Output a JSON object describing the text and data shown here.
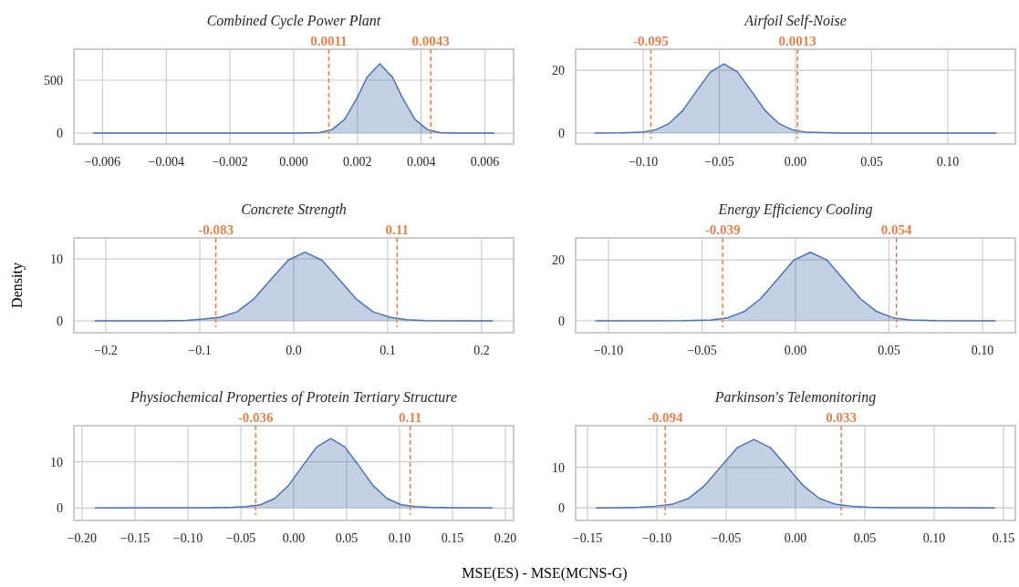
{
  "chart_data": [
    {
      "type": "area",
      "title": "Combined Cycle Power Plant",
      "color": "#4c72b0",
      "grid": true,
      "x": [
        -0.0063,
        -0.002,
        0.0,
        0.0008,
        0.0012,
        0.0016,
        0.002,
        0.0023,
        0.0027,
        0.0031,
        0.0034,
        0.0038,
        0.0042,
        0.0046,
        0.005,
        0.0063
      ],
      "values": [
        0,
        0,
        0,
        5,
        32,
        130,
        339,
        528,
        655,
        528,
        339,
        130,
        32,
        5,
        0,
        0
      ],
      "xlim": [
        -0.0069,
        0.0069
      ],
      "ylim": [
        -103,
        793
      ],
      "yticks": [
        0,
        500
      ],
      "xticks": [
        {
          "value": -0.006,
          "label": "−0.006"
        },
        {
          "value": -0.004,
          "label": "−0.004"
        },
        {
          "value": -0.002,
          "label": "−0.002"
        },
        {
          "value": 0,
          "label": "0.000"
        },
        {
          "value": 0.002,
          "label": "0.002"
        },
        {
          "value": 0.004,
          "label": "0.004"
        },
        {
          "value": 0.006,
          "label": "0.006"
        }
      ],
      "ref_lines": [
        {
          "axis": "x",
          "value": 0.0011,
          "label": "0.0011",
          "color": "#dd8452",
          "line_style": "dashed"
        },
        {
          "axis": "x",
          "value": 0.0043,
          "label": "0.0043",
          "color": "#dd8452",
          "line_style": "dashed"
        }
      ]
    },
    {
      "type": "area",
      "title": "Airfoil Self-Noise",
      "color": "#4c72b0",
      "grid": true,
      "x": [
        -0.132,
        -0.115,
        -0.1013,
        -0.0922,
        -0.0832,
        -0.0741,
        -0.0651,
        -0.056,
        -0.047,
        -0.038,
        -0.0289,
        -0.0199,
        -0.0108,
        -0.0018,
        0.0073,
        0.03,
        0.132
      ],
      "values": [
        0,
        0.05,
        0.24,
        0.97,
        2.98,
        7.14,
        13.3,
        19.4,
        22,
        19.4,
        13.3,
        7.14,
        2.98,
        0.97,
        0.24,
        0,
        0
      ],
      "xlim": [
        -0.1444,
        0.1444
      ],
      "ylim": [
        -3.5,
        26.7
      ],
      "yticks": [
        0,
        20
      ],
      "xticks": [
        {
          "value": -0.1,
          "label": "−0.10"
        },
        {
          "value": -0.05,
          "label": "−0.05"
        },
        {
          "value": 0,
          "label": "0.00"
        },
        {
          "value": 0.05,
          "label": "0.05"
        },
        {
          "value": 0.1,
          "label": "0.10"
        }
      ],
      "ref_lines": [
        {
          "axis": "x",
          "value": -0.095,
          "label": "-0.095",
          "color": "#dd8452",
          "line_style": "dashed"
        },
        {
          "axis": "x",
          "value": 0.0013,
          "label": "0.0013",
          "color": "#dd8452",
          "line_style": "dashed"
        }
      ]
    },
    {
      "type": "area",
      "title": "Concrete Strength",
      "ylabel": "Density",
      "color": "#4c72b0",
      "grid": true,
      "x": [
        -0.212,
        -0.14,
        -0.114,
        -0.096,
        -0.078,
        -0.06,
        -0.042,
        -0.024,
        -0.006,
        0.012,
        0.03,
        0.048,
        0.066,
        0.084,
        0.102,
        0.12,
        0.14,
        0.212
      ],
      "values": [
        0,
        0.03,
        0.1,
        0.3,
        0.6,
        1.5,
        3.6,
        6.73,
        9.8,
        11.1,
        9.8,
        6.73,
        3.6,
        1.5,
        0.6,
        0.2,
        0.05,
        0
      ],
      "xlim": [
        -0.234,
        0.234
      ],
      "ylim": [
        -1.9,
        13.4
      ],
      "yticks": [
        0,
        10
      ],
      "xticks": [
        {
          "value": -0.2,
          "label": "−0.2"
        },
        {
          "value": -0.1,
          "label": "−0.1"
        },
        {
          "value": 0,
          "label": "0.0"
        },
        {
          "value": 0.1,
          "label": "0.1"
        },
        {
          "value": 0.2,
          "label": "0.2"
        }
      ],
      "ref_lines": [
        {
          "axis": "x",
          "value": -0.083,
          "label": "-0.083",
          "color": "#dd8452",
          "line_style": "dashed"
        },
        {
          "axis": "x",
          "value": 0.11,
          "label": "0.11",
          "color": "#dd8452",
          "line_style": "dashed"
        }
      ]
    },
    {
      "type": "area",
      "title": "Energy Efficiency Cooling",
      "color": "#4c72b0",
      "grid": true,
      "x": [
        -0.107,
        -0.06,
        -0.0451,
        -0.0363,
        -0.0274,
        -0.0186,
        -0.0097,
        -0.0009,
        0.008,
        0.0169,
        0.0257,
        0.0346,
        0.0434,
        0.0523,
        0.0611,
        0.075,
        0.107
      ],
      "values": [
        0,
        0.05,
        0.3,
        0.99,
        3.04,
        7.31,
        13.6,
        19.9,
        22.5,
        19.9,
        13.6,
        7.31,
        3.04,
        0.99,
        0.3,
        0.05,
        0
      ],
      "xlim": [
        -0.1176,
        0.1176
      ],
      "ylim": [
        -3.9,
        27.2
      ],
      "yticks": [
        0,
        20
      ],
      "xticks": [
        {
          "value": -0.1,
          "label": "−0.10"
        },
        {
          "value": -0.05,
          "label": "−0.05"
        },
        {
          "value": 0,
          "label": "0.00"
        },
        {
          "value": 0.05,
          "label": "0.05"
        },
        {
          "value": 0.1,
          "label": "0.10"
        }
      ],
      "ref_lines": [
        {
          "axis": "x",
          "value": -0.039,
          "label": "-0.039",
          "color": "#dd8452",
          "line_style": "dashed"
        },
        {
          "axis": "x",
          "value": 0.054,
          "label": "0.054",
          "color": "#dd8452",
          "line_style": "dashed"
        }
      ]
    },
    {
      "type": "area",
      "title": "Physiochemical Properties of Protein Tertiary Structure",
      "xlabel": "MSE(ES) - MSE(MCNS-G)",
      "color": "#4c72b0",
      "grid": true,
      "x": [
        -0.188,
        -0.08,
        -0.0581,
        -0.0448,
        -0.0315,
        -0.0182,
        -0.0049,
        0.0084,
        0.0217,
        0.035,
        0.0483,
        0.0616,
        0.0749,
        0.0882,
        0.1015,
        0.1148,
        0.1281,
        0.15,
        0.188
      ],
      "values": [
        0,
        0.05,
        0.15,
        0.3,
        0.7,
        2.03,
        4.87,
        9.1,
        13.2,
        15,
        13.2,
        9.1,
        4.87,
        2.03,
        0.7,
        0.3,
        0.15,
        0.05,
        0
      ],
      "xlim": [
        -0.2077,
        0.2077
      ],
      "ylim": [
        -2.7,
        17.8
      ],
      "yticks": [
        0,
        10
      ],
      "xticks": [
        {
          "value": -0.2,
          "label": "−0.20"
        },
        {
          "value": -0.15,
          "label": "−0.15"
        },
        {
          "value": -0.1,
          "label": "−0.10"
        },
        {
          "value": -0.05,
          "label": "−0.05"
        },
        {
          "value": 0,
          "label": "0.00"
        },
        {
          "value": 0.05,
          "label": "0.05"
        },
        {
          "value": 0.1,
          "label": "0.10"
        },
        {
          "value": 0.15,
          "label": "0.15"
        },
        {
          "value": 0.2,
          "label": "0.20"
        }
      ],
      "ref_lines": [
        {
          "axis": "x",
          "value": -0.036,
          "label": "-0.036",
          "color": "#dd8452",
          "line_style": "dashed"
        },
        {
          "axis": "x",
          "value": 0.11,
          "label": "0.11",
          "color": "#dd8452",
          "line_style": "dashed"
        }
      ]
    },
    {
      "type": "area",
      "title": "Parkinson's Telemonitoring",
      "color": "#4c72b0",
      "grid": true,
      "x": [
        -0.144,
        -0.125,
        -0.113,
        -0.1011,
        -0.0893,
        -0.0774,
        -0.0656,
        -0.0537,
        -0.0419,
        -0.03,
        -0.0182,
        -0.0063,
        0.0056,
        0.0174,
        0.0293,
        0.0411,
        0.053,
        0.07,
        0.144
      ],
      "values": [
        0,
        0.05,
        0.15,
        0.4,
        0.85,
        2.27,
        5.45,
        10.2,
        14.8,
        16.8,
        14.8,
        10.2,
        5.45,
        2.27,
        0.85,
        0.4,
        0.15,
        0.05,
        0
      ],
      "xlim": [
        -0.1586,
        0.1586
      ],
      "ylim": [
        -3.1,
        20.2
      ],
      "yticks": [
        0,
        10
      ],
      "xticks": [
        {
          "value": -0.15,
          "label": "−0.15"
        },
        {
          "value": -0.1,
          "label": "−0.10"
        },
        {
          "value": -0.05,
          "label": "−0.05"
        },
        {
          "value": 0,
          "label": "0.00"
        },
        {
          "value": 0.05,
          "label": "0.05"
        },
        {
          "value": 0.1,
          "label": "0.10"
        },
        {
          "value": 0.15,
          "label": "0.15"
        }
      ],
      "ref_lines": [
        {
          "axis": "x",
          "value": -0.094,
          "label": "-0.094",
          "color": "#dd8452",
          "line_style": "dashed"
        },
        {
          "axis": "x",
          "value": 0.033,
          "label": "0.033",
          "color": "#dd8452",
          "line_style": "dashed"
        }
      ]
    }
  ]
}
